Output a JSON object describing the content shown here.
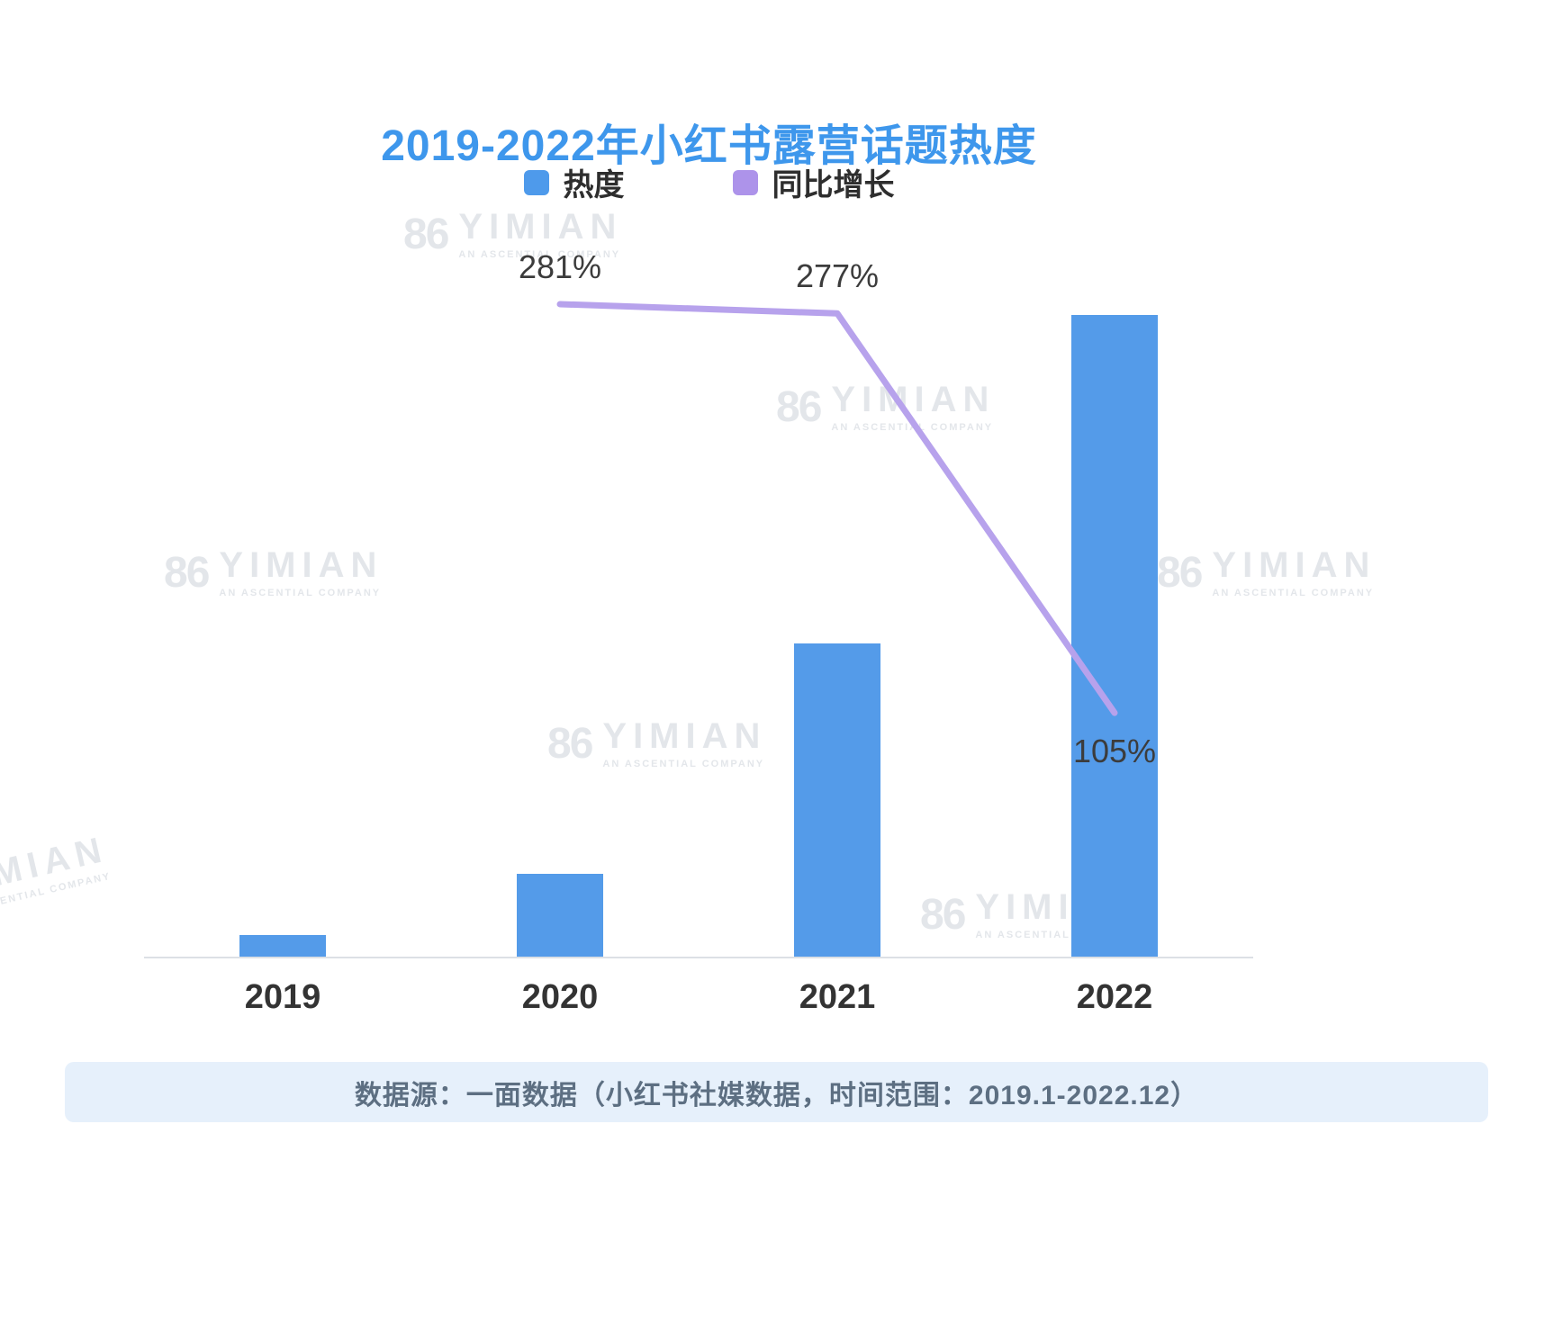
{
  "page": {
    "background": "#FFFFFF"
  },
  "chart": {
    "title": "2019-2022年小红书露营话题热度",
    "legend": [
      {
        "label": "热度",
        "color": "#4E9AEB"
      },
      {
        "label": "同比增长",
        "color": "#AD93EA"
      }
    ],
    "source_note": "数据源：一面数据（小红书社媒数据，时间范围：2019.1-2022.12）"
  },
  "watermark": {
    "logo_text": "86",
    "name": "YIMIAN",
    "subtext": "AN ASCENTIAL COMPANY"
  },
  "colors": {
    "title": "#3E97EC",
    "bar": "#549BE9",
    "line": "#B7A2EC",
    "axis": "#DCE0E5",
    "source_bg": "#E6F0FB",
    "source_text": "#5D6F82",
    "watermark": "#D5DAE0",
    "data_label": "#3C3C3C"
  },
  "chart_data": {
    "type": "bar",
    "combo": "bar+line",
    "title": "2019-2022年小红书露营话题热度",
    "categories": [
      "2019",
      "2020",
      "2021",
      "2022"
    ],
    "series": [
      {
        "name": "热度",
        "type": "bar",
        "color": "#549BE9",
        "values": [
          100,
          381,
          1436,
          2944
        ],
        "note": "relative heat index estimated from bar heights (2019 = 100; bars carry no numeric labels in the chart)"
      },
      {
        "name": "同比增长",
        "type": "line",
        "color": "#B7A2EC",
        "unit": "%",
        "values": [
          null,
          281,
          277,
          105
        ],
        "labels": [
          "",
          "281%",
          "277%",
          "105%"
        ]
      }
    ],
    "xlabel": "",
    "ylabel": "",
    "legend_position": "top",
    "grid": false
  }
}
